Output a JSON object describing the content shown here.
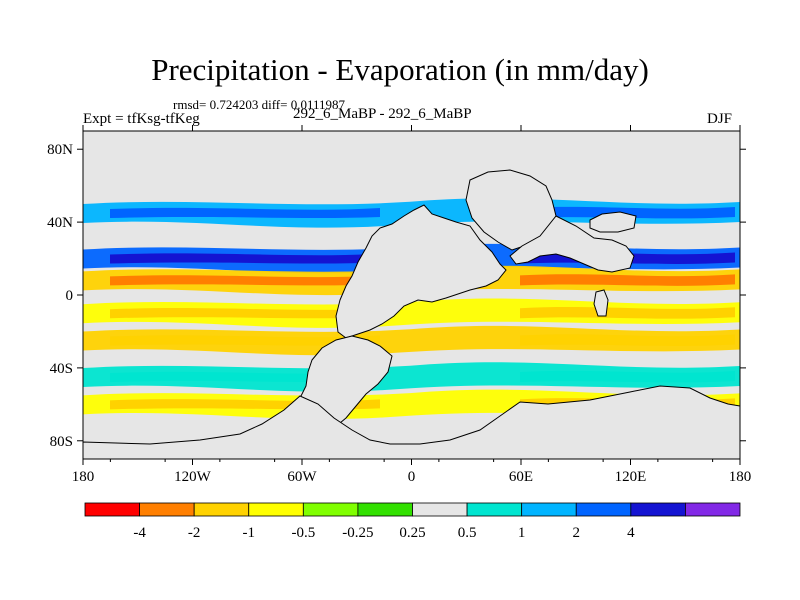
{
  "chart_data": {
    "type": "heatmap",
    "title": "Precipitation - Evaporation (in mm/day)",
    "stats": "rmsd= 0.724203 diff= 0.0111987",
    "left_label": "Expt = tfKsg-tfKeg",
    "center_label": "292_6_MaBP - 292_6_MaBP",
    "right_label": "DJF",
    "x_ticks": [
      "180",
      "120W",
      "60W",
      "0",
      "60E",
      "120E",
      "180"
    ],
    "y_ticks": [
      "80N",
      "40N",
      "0",
      "40S",
      "80S"
    ],
    "xlim": [
      -180,
      180
    ],
    "ylim": [
      -90,
      90
    ],
    "colorbar": {
      "colors": [
        "#ff0000",
        "#ff7f00",
        "#ffd200",
        "#ffff00",
        "#80ff00",
        "#32e000",
        "#e6e6e6",
        "#00e5d0",
        "#00b4ff",
        "#0064ff",
        "#1414d2",
        "#8228e6"
      ],
      "labels": [
        "-4",
        "-2",
        "-1",
        "-0.5",
        "-0.25",
        "0.25",
        "0.5",
        "1",
        "2",
        "4"
      ]
    },
    "bands": [
      {
        "lat": 60,
        "value": 0.3
      },
      {
        "lat": 45,
        "value": 1.5
      },
      {
        "lat": 20,
        "value": 3.0
      },
      {
        "lat": 8,
        "value": -2.0
      },
      {
        "lat": -10,
        "value": -0.7
      },
      {
        "lat": -25,
        "value": -1.2
      },
      {
        "lat": -45,
        "value": 0.6
      },
      {
        "lat": -60,
        "value": -0.8
      },
      {
        "lat": -75,
        "value": 0.3
      }
    ]
  }
}
